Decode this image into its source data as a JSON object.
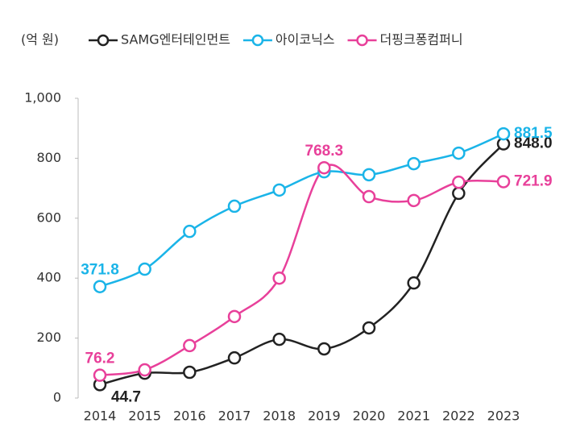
{
  "chart_data": {
    "type": "line",
    "unit_label": "(억 원)",
    "x": [
      "2014",
      "2015",
      "2016",
      "2017",
      "2018",
      "2019",
      "2020",
      "2021",
      "2022",
      "2023"
    ],
    "series": [
      {
        "name": "SAMG엔터테인먼트",
        "color": "#222222",
        "values": [
          44.7,
          83,
          86,
          134,
          196,
          164,
          234,
          384,
          683,
          848.0
        ],
        "value_labels": [
          "44.7",
          null,
          null,
          null,
          null,
          null,
          null,
          null,
          null,
          "848.0"
        ]
      },
      {
        "name": "아이코닉스",
        "color": "#1ab4e8",
        "values": [
          371.8,
          430,
          556,
          640,
          694,
          755,
          745,
          782,
          817,
          881.5
        ],
        "value_labels": [
          "371.8",
          null,
          null,
          null,
          null,
          null,
          null,
          null,
          null,
          "881.5"
        ]
      },
      {
        "name": "더핑크퐁컴퍼니",
        "color": "#e8409a",
        "values": [
          76.2,
          94,
          175,
          272,
          400,
          768.3,
          672,
          659,
          720,
          721.9
        ],
        "value_labels": [
          "76.2",
          null,
          null,
          null,
          null,
          "768.3",
          null,
          null,
          null,
          "721.9"
        ]
      }
    ],
    "ylim": [
      0,
      1000
    ],
    "yticks": [
      0,
      200,
      400,
      600,
      800,
      {
        "value": 1000,
        "label": "1,000"
      }
    ],
    "grid": false,
    "legend": "top"
  }
}
